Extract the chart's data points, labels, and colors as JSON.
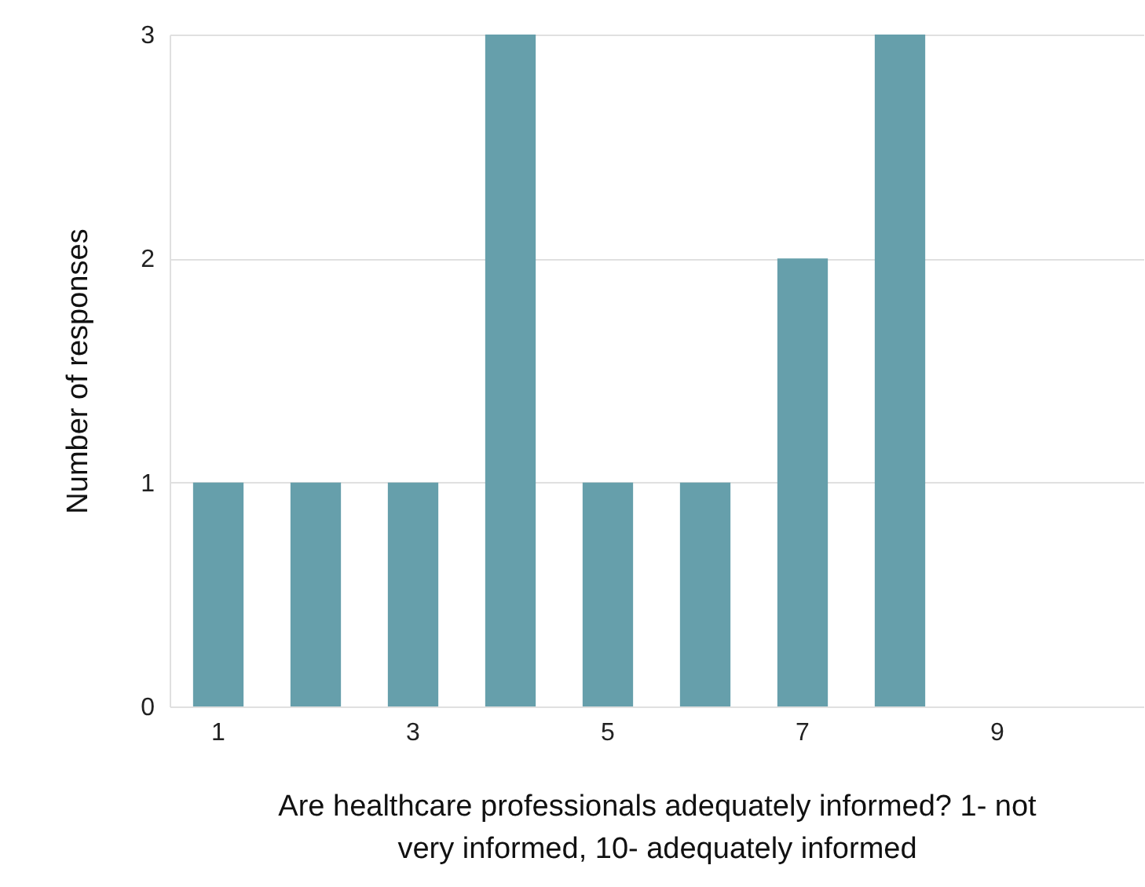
{
  "chart_data": {
    "type": "bar",
    "xlabel": "Are healthcare professionals adequately informed? 1- not very informed, 10- adequately informed",
    "ylabel": "Number of responses",
    "categories": [
      "1",
      null,
      "3",
      null,
      "5",
      null,
      "7",
      null,
      "9",
      null
    ],
    "values": [
      1,
      1,
      1,
      3,
      1,
      1,
      2,
      3,
      0,
      0
    ],
    "color": "#669fab",
    "ylim": [
      0,
      3
    ],
    "yticks": [
      0,
      1,
      2,
      3
    ],
    "grid": "y"
  }
}
